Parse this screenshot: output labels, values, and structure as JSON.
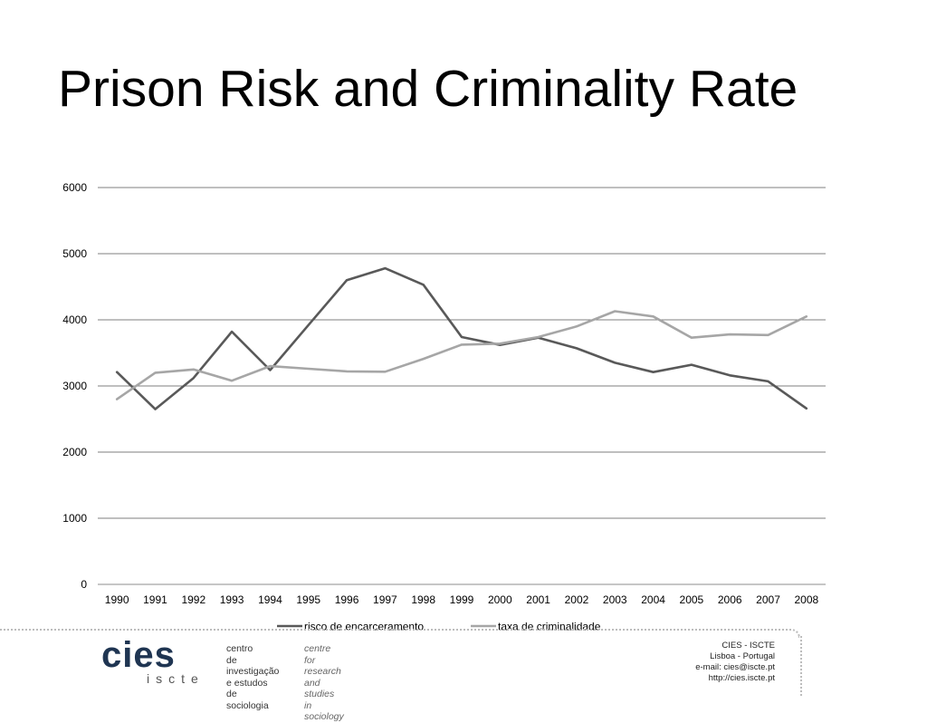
{
  "slide": {
    "title": "Prison Risk and Criminality Rate"
  },
  "chart_data": {
    "type": "line",
    "title": "",
    "xlabel": "",
    "ylabel": "",
    "ylim": [
      0,
      6000
    ],
    "yticks": [
      0,
      1000,
      2000,
      3000,
      4000,
      5000,
      6000
    ],
    "grid": true,
    "legend_position": "bottom",
    "categories": [
      "1990",
      "1991",
      "1992",
      "1993",
      "1994",
      "1995",
      "1996",
      "1997",
      "1998",
      "1999",
      "2000",
      "2001",
      "2002",
      "2003",
      "2004",
      "2005",
      "2006",
      "2007",
      "2008"
    ],
    "series": [
      {
        "name": "risco de encarceramento",
        "color": "#595959",
        "values": [
          3210,
          2650,
          3120,
          3820,
          3240,
          3920,
          4600,
          4780,
          4530,
          3740,
          3620,
          3730,
          3570,
          3350,
          3210,
          3320,
          3160,
          3070,
          2660
        ]
      },
      {
        "name": "taxa de criminalidade",
        "color": "#a6a6a6",
        "values": [
          2800,
          3200,
          3250,
          3080,
          3300,
          3260,
          3220,
          3215,
          3410,
          3625,
          3640,
          3740,
          3900,
          4130,
          4050,
          3730,
          3780,
          3770,
          4050
        ]
      }
    ]
  },
  "footer": {
    "logo_text": "cies",
    "logo_subtext": "iscte",
    "description_pt": "centro\nde investigação\ne estudos\nde sociologia",
    "description_en": "centre\nfor research\nand studies\nin sociology",
    "contact": "CIES - ISCTE\nLisboa - Portugal\ne-mail: cies@iscte.pt\nhttp://cies.iscte.pt"
  }
}
